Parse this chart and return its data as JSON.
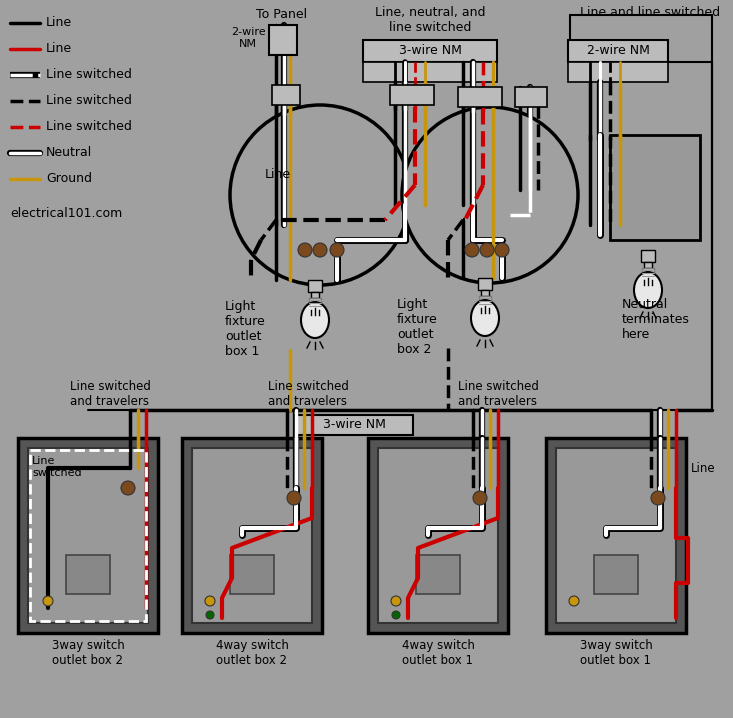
{
  "bg_color": "#a0a0a0",
  "legend_items": [
    {
      "label": "Line",
      "color": "#000000",
      "linestyle": "solid"
    },
    {
      "label": "Line",
      "color": "#cc0000",
      "linestyle": "solid"
    },
    {
      "label": "Line switched",
      "color": "#ffffff",
      "linestyle": "dashdot",
      "outline": true
    },
    {
      "label": "Line switched",
      "color": "#000000",
      "linestyle": "dashed"
    },
    {
      "label": "Line switched",
      "color": "#cc0000",
      "linestyle": "dashed"
    },
    {
      "label": "Neutral",
      "color": "#ffffff",
      "linestyle": "solid",
      "outline": true
    },
    {
      "label": "Ground",
      "color": "#c8960a",
      "linestyle": "solid"
    }
  ],
  "website": "electrical101.com",
  "label_to_panel": "To Panel",
  "label_2wire_nm": "2-wire\nNM",
  "label_3wire_nm_top": "3-wire NM",
  "label_2wire_nm_right": "2-wire NM",
  "label_line_neutral": "Line, neutral, and\nline switched",
  "label_line_switched": "Line and line switched",
  "label_line": "Line",
  "label_box1": "Light\nfixture\noutlet\nbox 1",
  "label_box2": "Light\nfixture\noutlet\nbox 2",
  "label_neutral_term": "Neutral\nterminates\nhere",
  "label_travelers1": "Line switched\nand travelers",
  "label_travelers2": "Line switched\nand travelers",
  "label_travelers3": "Line switched\nand travelers",
  "label_3wire_nm_bot": "3-wire NM",
  "label_line_switched_box": "Line\nswitched",
  "label_line_right": "Line",
  "box_labels": [
    "3way switch\noutlet box 2",
    "4way switch\noutlet box 2",
    "4way switch\noutlet box 1",
    "3way switch\noutlet box 1"
  ],
  "BLACK": "#000000",
  "RED": "#cc0000",
  "WHITE": "#ffffff",
  "GOLD": "#c8960a",
  "BROWN": "#7a4a1e",
  "GRAY_BG": "#a0a0a0",
  "GRAY_BOX": "#888888",
  "GRAY_DARK": "#555555",
  "GRAY_INNER": "#999999",
  "GRAY_LIGHT": "#bbbbbb",
  "GREEN": "#006600"
}
